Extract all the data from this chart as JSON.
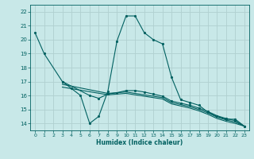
{
  "title": "",
  "xlabel": "Humidex (Indice chaleur)",
  "bg_color": "#c8e8e8",
  "grid_color": "#b0d0d0",
  "line_color": "#006060",
  "series": [
    {
      "x": [
        0,
        1,
        3,
        4,
        5,
        6,
        7,
        8,
        9,
        10,
        11,
        12,
        13,
        14,
        15,
        16,
        17,
        18,
        19,
        20,
        21,
        22,
        23
      ],
      "y": [
        20.5,
        19.0,
        17.0,
        16.5,
        16.0,
        14.0,
        14.5,
        16.3,
        19.9,
        21.7,
        21.7,
        20.5,
        20.0,
        19.7,
        17.3,
        15.7,
        15.5,
        15.3,
        14.8,
        14.5,
        14.3,
        14.3,
        13.8
      ],
      "marker": true
    },
    {
      "x": [
        3,
        6,
        7,
        8,
        9,
        10,
        11,
        12,
        13,
        14,
        15,
        16,
        17,
        18,
        19,
        20,
        21,
        22,
        23
      ],
      "y": [
        17.0,
        16.0,
        15.8,
        16.1,
        16.2,
        16.35,
        16.35,
        16.25,
        16.1,
        15.95,
        15.6,
        15.45,
        15.3,
        15.1,
        14.85,
        14.55,
        14.35,
        14.2,
        13.8
      ],
      "marker": true
    },
    {
      "x": [
        3,
        8,
        10,
        14,
        15,
        16,
        17,
        18,
        19,
        20,
        21,
        22,
        23
      ],
      "y": [
        16.8,
        16.15,
        16.25,
        15.85,
        15.5,
        15.35,
        15.2,
        15.0,
        14.75,
        14.45,
        14.25,
        14.1,
        13.8
      ],
      "marker": false
    },
    {
      "x": [
        3,
        8,
        10,
        14,
        15,
        16,
        17,
        18,
        19,
        20,
        21,
        22,
        23
      ],
      "y": [
        16.6,
        16.05,
        16.15,
        15.75,
        15.4,
        15.25,
        15.1,
        14.9,
        14.65,
        14.35,
        14.15,
        14.0,
        13.8
      ],
      "marker": false
    }
  ],
  "ylim": [
    13.5,
    22.5
  ],
  "xlim": [
    -0.5,
    23.5
  ],
  "yticks": [
    14,
    15,
    16,
    17,
    18,
    19,
    20,
    21,
    22
  ],
  "xticks": [
    0,
    1,
    2,
    3,
    4,
    5,
    6,
    7,
    8,
    9,
    10,
    11,
    12,
    13,
    14,
    15,
    16,
    17,
    18,
    19,
    20,
    21,
    22,
    23
  ]
}
